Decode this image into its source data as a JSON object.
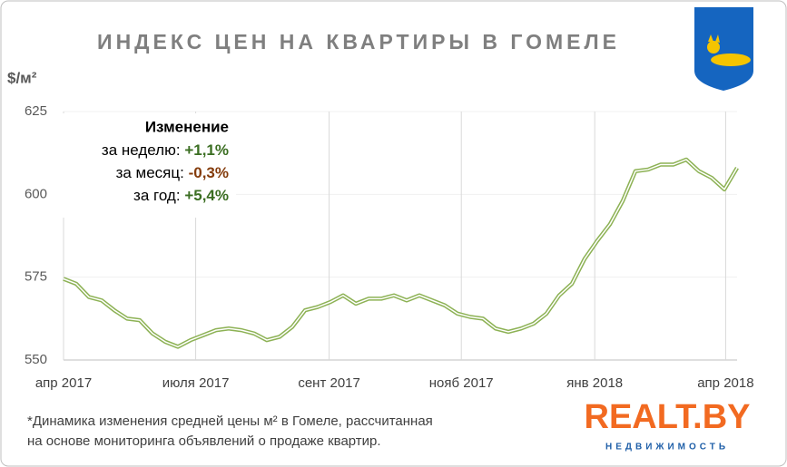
{
  "chart_data": {
    "type": "line",
    "title": "ИНДЕКС ЦЕН НА КВАРТИРЫ В ГОМЕЛЕ",
    "y_label": "$/м²",
    "annotation": {
      "heading": "Изменение",
      "lines": [
        {
          "label": "за неделю:",
          "value": "+1,1%",
          "color": "#3b6e22"
        },
        {
          "label": "за месяц:",
          "value": "-0,3%",
          "color": "#843c0c"
        },
        {
          "label": "за год:",
          "value": "+5,4%",
          "color": "#3b6e22"
        }
      ]
    },
    "footnote": [
      "*Динамика изменения средней цены м² в Гомеле, рассчитанная",
      "на основе мониторинга объявлений о продаже квартир."
    ],
    "logo": {
      "name": "REALT.BY",
      "tagline": "НЕДВИЖИМОСТЬ"
    },
    "x": [
      0,
      1,
      2,
      3,
      4,
      5,
      6,
      7,
      8,
      9,
      10,
      11,
      12,
      13,
      14,
      15,
      16,
      17,
      18,
      19,
      20,
      21,
      22,
      23,
      24,
      25,
      26,
      27,
      28,
      29,
      30,
      31,
      32,
      33,
      34,
      35,
      36,
      37,
      38,
      39,
      40,
      41,
      42,
      43,
      44,
      45,
      46,
      47,
      48,
      49,
      50,
      51,
      52,
      53
    ],
    "series": [
      {
        "name": "Индекс",
        "color": "#8db255",
        "values": [
          574.5,
          573,
          569,
          568,
          565,
          562.5,
          562,
          558,
          555.5,
          554,
          556,
          557.5,
          559,
          559.5,
          559,
          558,
          556,
          557,
          560,
          565,
          566,
          567.5,
          569.5,
          567,
          568.5,
          568.5,
          569.5,
          568,
          569.5,
          568,
          566.5,
          564,
          563,
          562.5,
          559.5,
          558.5,
          559.5,
          561,
          564,
          569.5,
          573,
          580.5,
          586,
          591,
          598,
          607,
          607.5,
          609,
          609,
          610.5,
          607,
          605,
          601.5,
          608
        ]
      }
    ],
    "xlim": [
      0,
      53
    ],
    "xticks": [
      {
        "value": 0,
        "label": "апр 2017"
      },
      {
        "value": 10.4,
        "label": "июля 2017"
      },
      {
        "value": 20.9,
        "label": "сент 2017"
      },
      {
        "value": 31.3,
        "label": "нояб 2017"
      },
      {
        "value": 41.8,
        "label": "янв 2018"
      },
      {
        "value": 52.1,
        "label": "апр 2018"
      }
    ],
    "ylim": [
      550,
      625
    ],
    "yticks": [
      550,
      575,
      600,
      625
    ],
    "grid": true
  }
}
